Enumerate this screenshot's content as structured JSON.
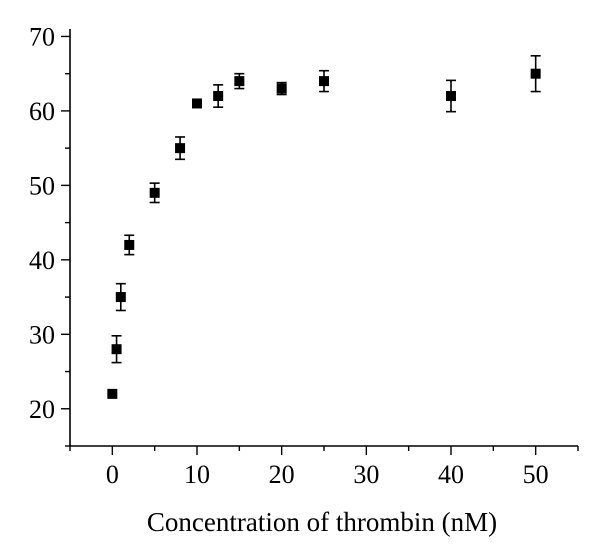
{
  "chart_data": {
    "type": "scatter",
    "title": "",
    "xlabel": "Concentration of thrombin (nM)",
    "ylabel": "",
    "xlim": [
      -5,
      55
    ],
    "ylim": [
      15,
      71
    ],
    "x_ticks": [
      0,
      10,
      20,
      30,
      40,
      50
    ],
    "y_ticks": [
      20,
      30,
      40,
      50,
      60,
      70
    ],
    "grid": false,
    "legend": "none",
    "marker_color": "#000000",
    "series": [
      {
        "x": [
          0,
          0.5,
          1,
          2,
          5,
          8,
          10,
          12.5,
          15,
          20,
          25,
          40,
          50
        ],
        "y": [
          22,
          28,
          35,
          42,
          49,
          55,
          61,
          62,
          64,
          63,
          64,
          62,
          65
        ],
        "error": [
          0,
          1.8,
          1.8,
          1.3,
          1.3,
          1.5,
          0,
          1.5,
          1.0,
          0.8,
          1.4,
          2.1,
          2.4
        ]
      }
    ]
  }
}
